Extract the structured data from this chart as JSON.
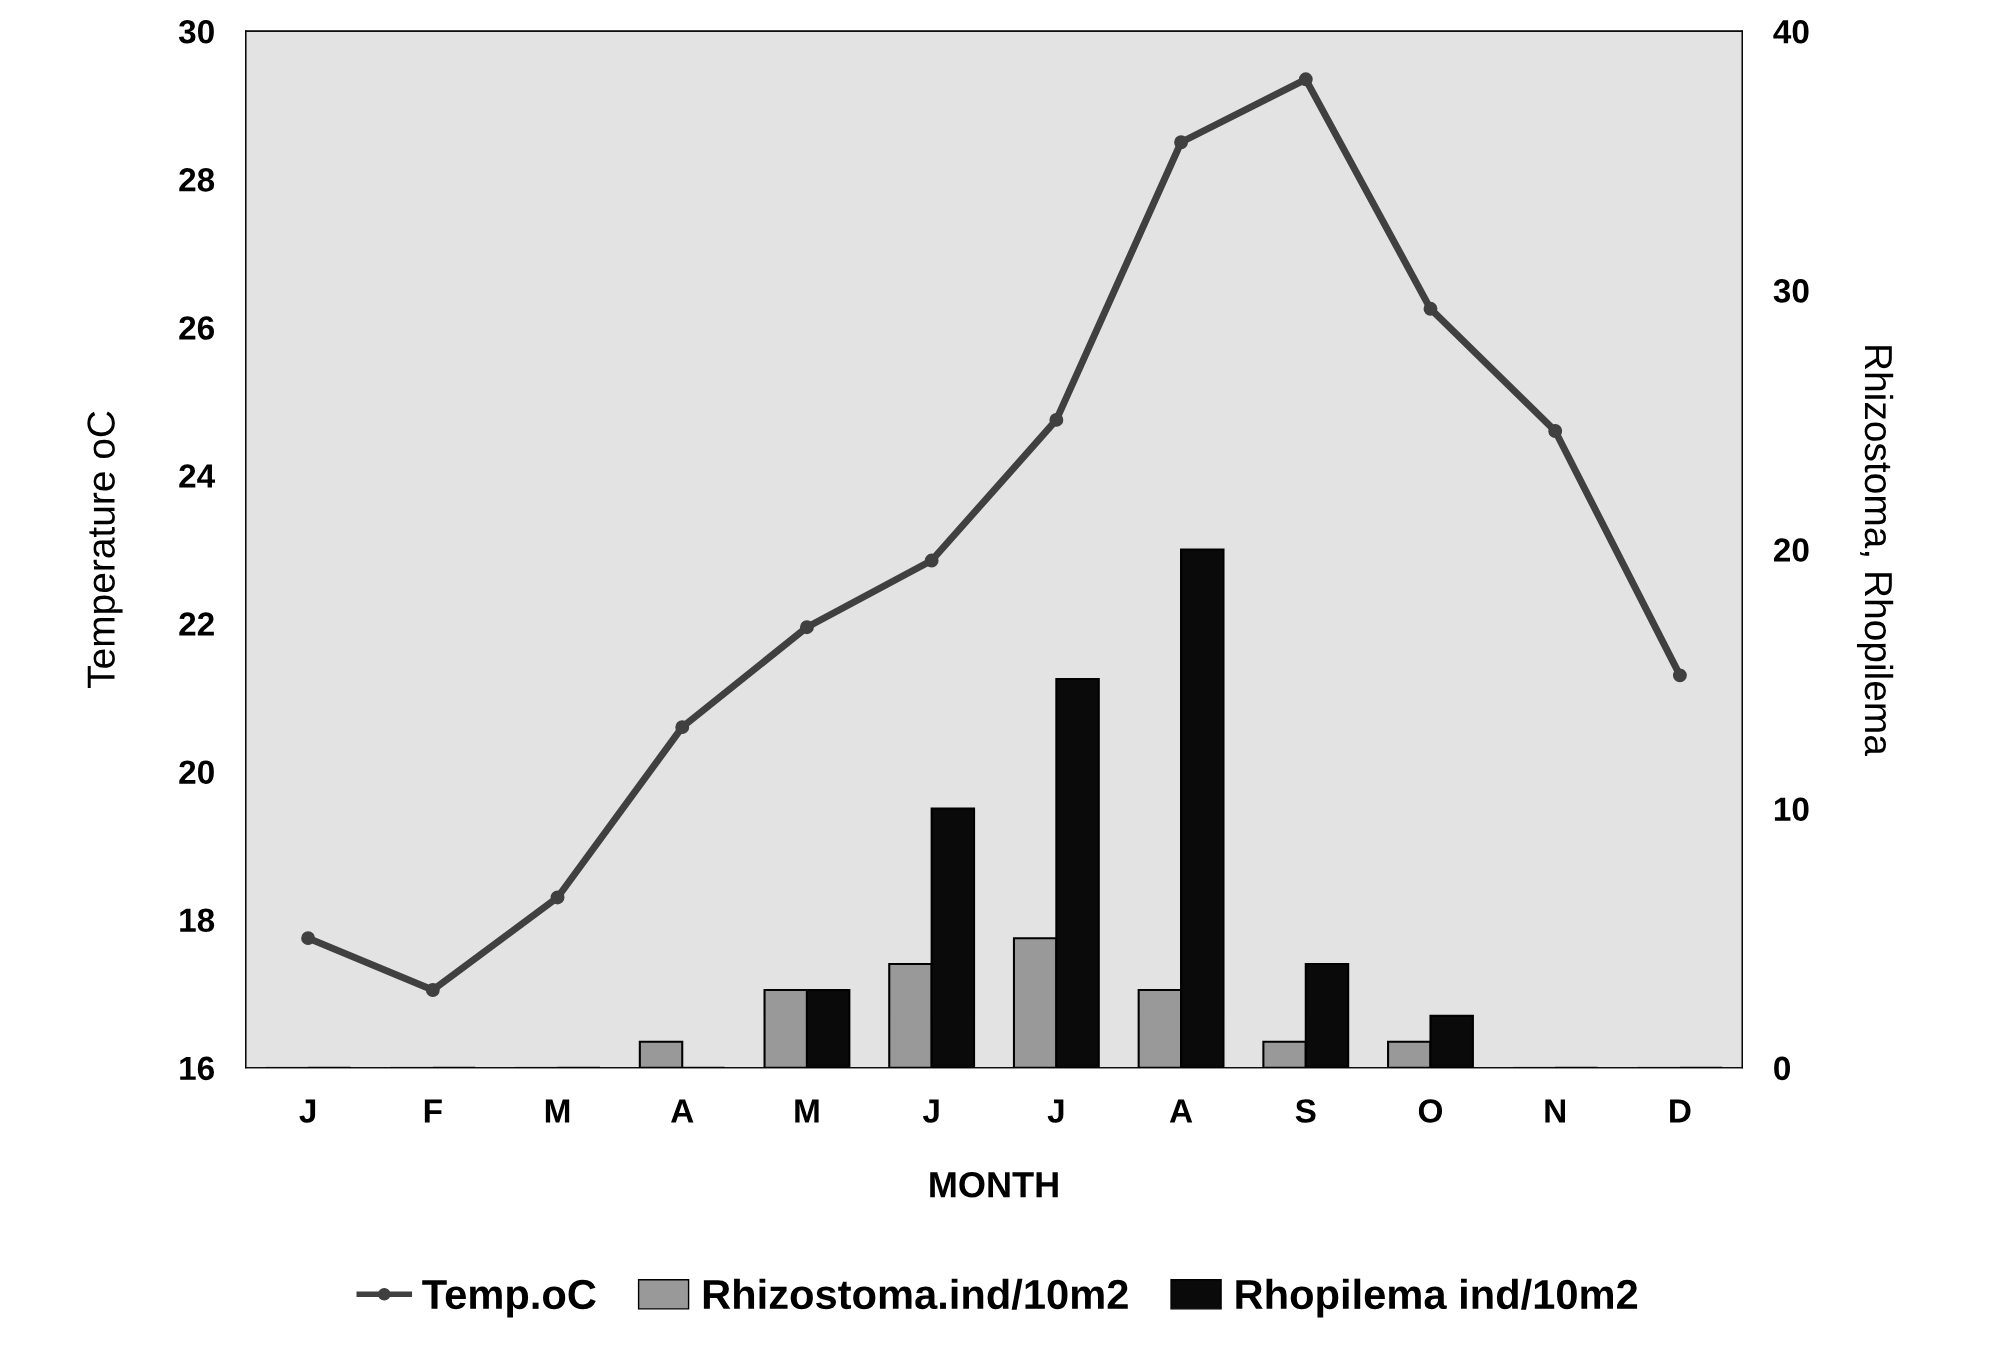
{
  "chart_data": {
    "type": "bar",
    "xlabel": "MONTH",
    "ylabel": "Temperature oC",
    "y2label": "Rhizostoma, Rhopilema",
    "categories": [
      "J",
      "F",
      "M",
      "A",
      "M",
      "J",
      "J",
      "A",
      "S",
      "O",
      "N",
      "D"
    ],
    "series": [
      {
        "name": "Temp.oC",
        "type": "line",
        "color": "#404040",
        "marker": "circle",
        "values": [
          17.75,
          17.05,
          18.3,
          20.6,
          21.95,
          22.85,
          24.75,
          28.5,
          29.35,
          26.25,
          24.6,
          21.3
        ]
      },
      {
        "name": "Rhizostoma.ind/10m2",
        "axis": "y2",
        "color": "#999999",
        "values": [
          0,
          0,
          0,
          1,
          3,
          4,
          5,
          3,
          1,
          1,
          0,
          0
        ]
      },
      {
        "name": "Rhopilema ind/10m2",
        "axis": "y2",
        "color": "#0a0a0a",
        "values": [
          0,
          0,
          0,
          0,
          3,
          10,
          15,
          20,
          4,
          2,
          0,
          0
        ]
      }
    ],
    "ylim": [
      16,
      30
    ],
    "yticks": [
      16,
      18,
      20,
      22,
      24,
      26,
      28,
      30
    ],
    "y2lim": [
      0,
      40
    ],
    "y2ticks": [
      0,
      10,
      20,
      30,
      40
    ],
    "grid": false,
    "legend": "bottom"
  }
}
